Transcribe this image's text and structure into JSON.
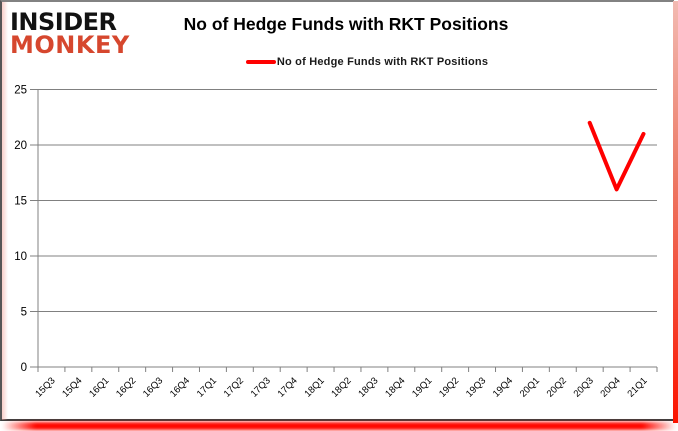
{
  "brand": {
    "line1": "INSIDER",
    "line2": "MONKEY"
  },
  "header": {
    "title": "No of Hedge Funds with RKT Positions"
  },
  "legend": {
    "label": "No of Hedge Funds with RKT Positions"
  },
  "colors": {
    "series": "#ff0000",
    "grid": "#808080",
    "axis": "#808080",
    "tick_text": "#000000",
    "brand_black": "#121212",
    "brand_red": "#d6472e",
    "frame_glow": "#ff0800"
  },
  "chart_data": {
    "type": "line",
    "title": "No of Hedge Funds with RKT Positions",
    "categories": [
      "15Q3",
      "15Q4",
      "16Q1",
      "16Q2",
      "16Q3",
      "16Q4",
      "17Q1",
      "17Q2",
      "17Q3",
      "17Q4",
      "18Q1",
      "18Q2",
      "18Q3",
      "18Q4",
      "19Q1",
      "19Q2",
      "19Q3",
      "19Q4",
      "20Q1",
      "20Q2",
      "20Q3",
      "20Q4",
      "21Q1"
    ],
    "series": [
      {
        "name": "No of Hedge Funds with RKT Positions",
        "color": "#ff0000",
        "points": [
          {
            "category": "20Q3",
            "value": 22
          },
          {
            "category": "20Q4",
            "value": 16
          },
          {
            "category": "21Q1",
            "value": 21
          }
        ]
      }
    ],
    "ylim": [
      0,
      25
    ],
    "yticks": [
      0,
      5,
      10,
      15,
      20,
      25
    ],
    "grid": "horizontal-only",
    "legend_position": "top-center",
    "x_label_rotation": -45
  }
}
